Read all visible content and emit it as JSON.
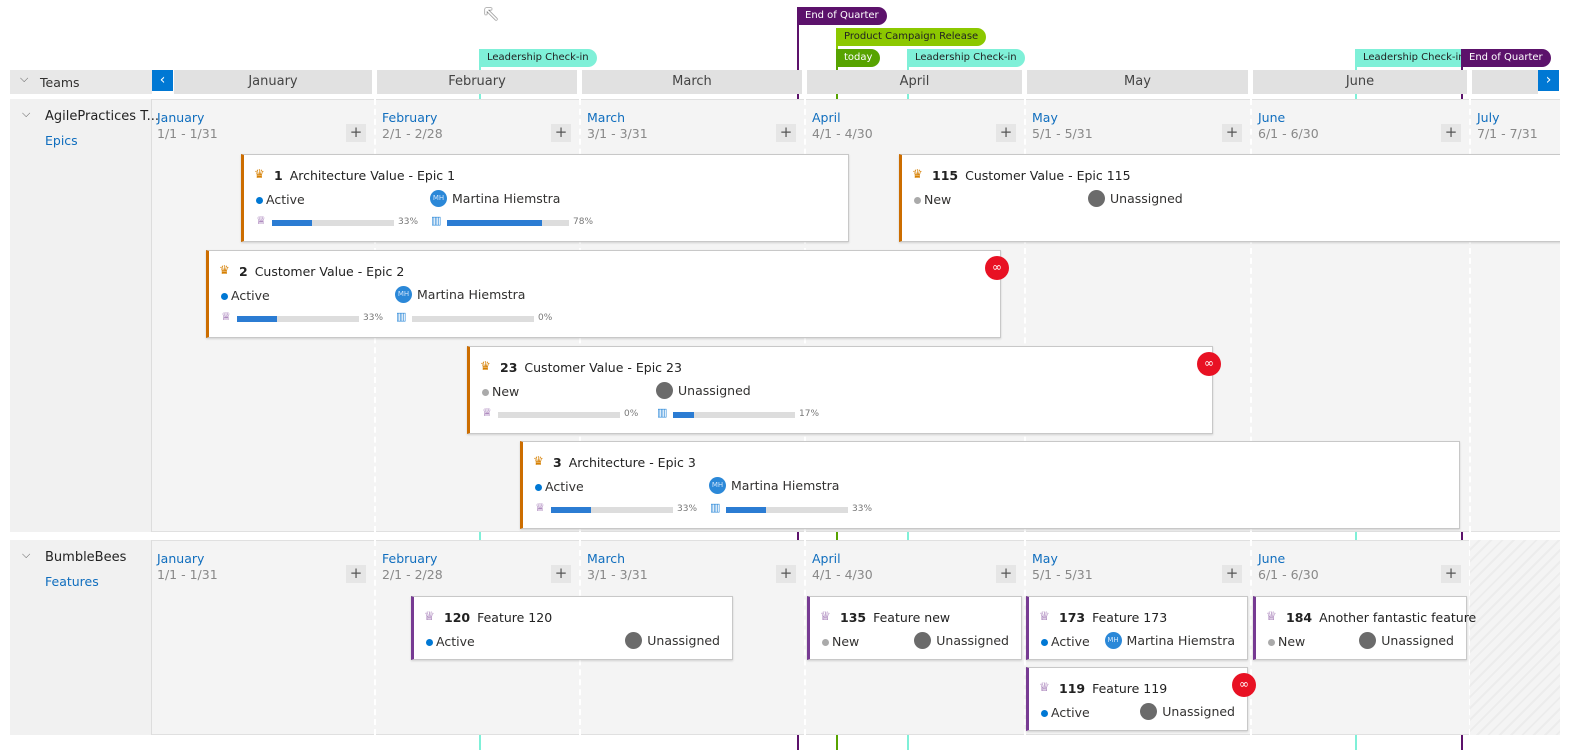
{
  "markers": [
    "End of Quarter",
    "Product Campaign Release",
    "today",
    "Leadership Check-in",
    "Leadership Check-in",
    "Leadership Check-in",
    "End of Quarter"
  ],
  "header": {
    "teams_label": "Teams",
    "months": [
      "January",
      "February",
      "March",
      "April",
      "May",
      "June"
    ]
  },
  "teams": [
    {
      "name": "AgilePractices T...",
      "backlog": "Epics",
      "months": [
        {
          "name": "January",
          "range": "1/1 - 1/31"
        },
        {
          "name": "February",
          "range": "2/1 - 2/28"
        },
        {
          "name": "March",
          "range": "3/1 - 3/31"
        },
        {
          "name": "April",
          "range": "4/1 - 4/30"
        },
        {
          "name": "May",
          "range": "5/1 - 5/31"
        },
        {
          "name": "June",
          "range": "6/1 - 6/30"
        },
        {
          "name": "July",
          "range": "7/1 - 7/31"
        }
      ],
      "cards": [
        {
          "id": "1",
          "title": "Architecture Value - Epic 1",
          "state": "Active",
          "assignee": "Martina Hiemstra",
          "initials": "MH",
          "progress": [
            33,
            78
          ],
          "progress_labels": [
            "33%",
            "78%"
          ]
        },
        {
          "id": "115",
          "title": "Customer Value - Epic 115",
          "state": "New",
          "assignee": "Unassigned"
        },
        {
          "id": "2",
          "title": "Customer Value - Epic 2",
          "state": "Active",
          "assignee": "Martina Hiemstra",
          "initials": "MH",
          "progress": [
            33,
            0
          ],
          "progress_labels": [
            "33%",
            "0%"
          ]
        },
        {
          "id": "23",
          "title": "Customer Value - Epic 23",
          "state": "New",
          "assignee": "Unassigned",
          "progress": [
            0,
            17
          ],
          "progress_labels": [
            "0%",
            "17%"
          ]
        },
        {
          "id": "3",
          "title": "Architecture - Epic 3",
          "state": "Active",
          "assignee": "Martina Hiemstra",
          "initials": "MH",
          "progress": [
            33,
            33
          ],
          "progress_labels": [
            "33%",
            "33%"
          ]
        }
      ]
    },
    {
      "name": "BumbleBees",
      "backlog": "Features",
      "months": [
        {
          "name": "January",
          "range": "1/1 - 1/31"
        },
        {
          "name": "February",
          "range": "2/1 - 2/28"
        },
        {
          "name": "March",
          "range": "3/1 - 3/31"
        },
        {
          "name": "April",
          "range": "4/1 - 4/30"
        },
        {
          "name": "May",
          "range": "5/1 - 5/31"
        },
        {
          "name": "June",
          "range": "6/1 - 6/30"
        }
      ],
      "cards": [
        {
          "id": "120",
          "title": "Feature 120",
          "state": "Active",
          "assignee": "Unassigned"
        },
        {
          "id": "135",
          "title": "Feature new",
          "state": "New",
          "assignee": "Unassigned"
        },
        {
          "id": "173",
          "title": "Feature 173",
          "state": "Active",
          "assignee": "Martina Hiemstra",
          "initials": "MH"
        },
        {
          "id": "184",
          "title": "Another fantastic feature",
          "state": "New",
          "assignee": "Unassigned"
        },
        {
          "id": "119",
          "title": "Feature 119",
          "state": "Active",
          "assignee": "Unassigned"
        }
      ]
    }
  ]
}
